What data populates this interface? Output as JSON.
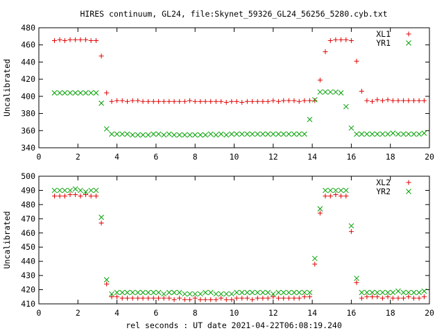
{
  "chart_data": [
    {
      "type": "scatter",
      "title": "HIRES continuum, GL24, file:Skynet_59326_GL24_56256_5280.cyb.txt",
      "xlabel": "",
      "ylabel": "Uncalibrated",
      "xlim": [
        0,
        20
      ],
      "ylim": [
        340,
        480
      ],
      "xticks": [
        0,
        2,
        4,
        6,
        8,
        10,
        12,
        14,
        16,
        18,
        20
      ],
      "yticks": [
        340,
        360,
        380,
        400,
        420,
        440,
        460,
        480
      ],
      "legend": "top-right",
      "grid": false,
      "series": [
        {
          "name": "XL1",
          "color": "#e00000",
          "marker": "plus",
          "x": [
            0.8,
            1.07,
            1.33,
            1.6,
            1.87,
            2.13,
            2.4,
            2.67,
            2.93,
            3.2,
            3.47,
            3.73,
            4.0,
            4.27,
            4.53,
            4.8,
            5.07,
            5.33,
            5.6,
            5.87,
            6.13,
            6.4,
            6.67,
            6.93,
            7.2,
            7.47,
            7.73,
            8.0,
            8.27,
            8.53,
            8.8,
            9.07,
            9.33,
            9.6,
            9.87,
            10.13,
            10.4,
            10.67,
            10.93,
            11.2,
            11.47,
            11.73,
            12.0,
            12.27,
            12.53,
            12.8,
            13.07,
            13.33,
            13.6,
            13.87,
            14.13,
            14.4,
            14.67,
            14.93,
            15.2,
            15.47,
            15.73,
            16.0,
            16.27,
            16.53,
            16.8,
            17.07,
            17.33,
            17.6,
            17.87,
            18.13,
            18.4,
            18.67,
            18.93,
            19.2,
            19.47,
            19.73
          ],
          "y": [
            465,
            466,
            465,
            466,
            466,
            466,
            466,
            465,
            465,
            447,
            404,
            394,
            395,
            395,
            394,
            395,
            395,
            394,
            394,
            394,
            394,
            394,
            394,
            394,
            394,
            394,
            395,
            394,
            394,
            394,
            394,
            394,
            394,
            393,
            394,
            394,
            393,
            394,
            394,
            394,
            394,
            394,
            395,
            394,
            395,
            395,
            395,
            394,
            395,
            395,
            395,
            419,
            452,
            465,
            466,
            466,
            466,
            465,
            441,
            406,
            395,
            394,
            396,
            395,
            396,
            395,
            395,
            395,
            395,
            395,
            395,
            395
          ],
          "y_note": ""
        },
        {
          "name": "YR1",
          "color": "#00a000",
          "marker": "cross",
          "x": [
            0.8,
            1.07,
            1.33,
            1.6,
            1.87,
            2.13,
            2.4,
            2.67,
            2.93,
            3.2,
            3.47,
            3.73,
            4.0,
            4.27,
            4.53,
            4.8,
            5.07,
            5.33,
            5.6,
            5.87,
            6.13,
            6.4,
            6.67,
            6.93,
            7.2,
            7.47,
            7.73,
            8.0,
            8.27,
            8.53,
            8.8,
            9.07,
            9.33,
            9.6,
            9.87,
            10.13,
            10.4,
            10.67,
            10.93,
            11.2,
            11.47,
            11.73,
            12.0,
            12.27,
            12.53,
            12.8,
            13.07,
            13.33,
            13.6,
            13.87,
            14.13,
            14.4,
            14.67,
            14.93,
            15.2,
            15.47,
            15.73,
            16.0,
            16.27,
            16.53,
            16.8,
            17.07,
            17.33,
            17.6,
            17.87,
            18.13,
            18.4,
            18.67,
            18.93,
            19.2,
            19.47,
            19.73
          ],
          "y": [
            404,
            404,
            404,
            404,
            404,
            404,
            404,
            404,
            404,
            392,
            362,
            356,
            356,
            356,
            356,
            355,
            355,
            355,
            355,
            356,
            356,
            355,
            356,
            355,
            355,
            355,
            355,
            355,
            355,
            355,
            356,
            355,
            356,
            355,
            356,
            356,
            356,
            356,
            356,
            356,
            356,
            356,
            356,
            356,
            356,
            356,
            356,
            356,
            356,
            373,
            396,
            405,
            405,
            405,
            405,
            404,
            388,
            363,
            356,
            356,
            356,
            356,
            356,
            356,
            356,
            357,
            356,
            356,
            356,
            356,
            356,
            357
          ]
        }
      ]
    },
    {
      "type": "scatter",
      "title": "",
      "xlabel": "rel seconds : UT date 2021-04-22T06:08:19.240",
      "ylabel": "Uncalibrated",
      "xlim": [
        0,
        20
      ],
      "ylim": [
        410,
        500
      ],
      "xticks": [
        0,
        2,
        4,
        6,
        8,
        10,
        12,
        14,
        16,
        18,
        20
      ],
      "yticks": [
        410,
        420,
        430,
        440,
        450,
        460,
        470,
        480,
        490,
        500
      ],
      "legend": "top-right",
      "grid": false,
      "series": [
        {
          "name": "XL2",
          "color": "#e00000",
          "marker": "plus",
          "x": [
            0.8,
            1.07,
            1.33,
            1.6,
            1.87,
            2.13,
            2.4,
            2.67,
            2.93,
            3.2,
            3.47,
            3.73,
            4.0,
            4.27,
            4.53,
            4.8,
            5.07,
            5.33,
            5.6,
            5.87,
            6.13,
            6.4,
            6.67,
            6.93,
            7.2,
            7.47,
            7.73,
            8.0,
            8.27,
            8.53,
            8.8,
            9.07,
            9.33,
            9.6,
            9.87,
            10.13,
            10.4,
            10.67,
            10.93,
            11.2,
            11.47,
            11.73,
            12.0,
            12.27,
            12.53,
            12.8,
            13.07,
            13.33,
            13.6,
            13.87,
            14.13,
            14.4,
            14.67,
            14.93,
            15.2,
            15.47,
            15.73,
            16.0,
            16.27,
            16.53,
            16.8,
            17.07,
            17.33,
            17.6,
            17.87,
            18.13,
            18.4,
            18.67,
            18.93,
            19.2,
            19.47,
            19.73
          ],
          "y": [
            486,
            486,
            486,
            487,
            487,
            486,
            487,
            486,
            486,
            467,
            424,
            415,
            415,
            414,
            414,
            414,
            414,
            414,
            414,
            414,
            414,
            414,
            414,
            413,
            414,
            413,
            413,
            414,
            413,
            413,
            413,
            413,
            414,
            413,
            413,
            414,
            414,
            414,
            413,
            414,
            414,
            414,
            415,
            414,
            414,
            414,
            414,
            414,
            415,
            415,
            438,
            474,
            486,
            486,
            487,
            486,
            486,
            461,
            425,
            414,
            415,
            415,
            415,
            414,
            415,
            414,
            414,
            414,
            415,
            414,
            414,
            415
          ]
        },
        {
          "name": "YR2",
          "color": "#00a000",
          "marker": "cross",
          "x": [
            0.8,
            1.07,
            1.33,
            1.6,
            1.87,
            2.13,
            2.4,
            2.67,
            2.93,
            3.2,
            3.47,
            3.73,
            4.0,
            4.27,
            4.53,
            4.8,
            5.07,
            5.33,
            5.6,
            5.87,
            6.13,
            6.4,
            6.67,
            6.93,
            7.2,
            7.47,
            7.73,
            8.0,
            8.27,
            8.53,
            8.8,
            9.07,
            9.33,
            9.6,
            9.87,
            10.13,
            10.4,
            10.67,
            10.93,
            11.2,
            11.47,
            11.73,
            12.0,
            12.27,
            12.53,
            12.8,
            13.07,
            13.33,
            13.6,
            13.87,
            14.13,
            14.4,
            14.67,
            14.93,
            15.2,
            15.47,
            15.73,
            16.0,
            16.27,
            16.53,
            16.8,
            17.07,
            17.33,
            17.6,
            17.87,
            18.13,
            18.4,
            18.67,
            18.93,
            19.2,
            19.47,
            19.73
          ],
          "y": [
            490,
            490,
            490,
            490,
            491,
            490,
            489,
            490,
            490,
            471,
            427,
            417,
            418,
            418,
            418,
            418,
            418,
            418,
            418,
            418,
            418,
            417,
            418,
            418,
            418,
            417,
            417,
            417,
            417,
            418,
            418,
            417,
            417,
            417,
            417,
            418,
            418,
            418,
            418,
            418,
            418,
            418,
            417,
            418,
            418,
            418,
            418,
            418,
            418,
            418,
            442,
            477,
            490,
            490,
            490,
            490,
            490,
            465,
            428,
            418,
            418,
            418,
            418,
            418,
            418,
            418,
            419,
            418,
            418,
            418,
            418,
            419
          ]
        }
      ]
    }
  ]
}
